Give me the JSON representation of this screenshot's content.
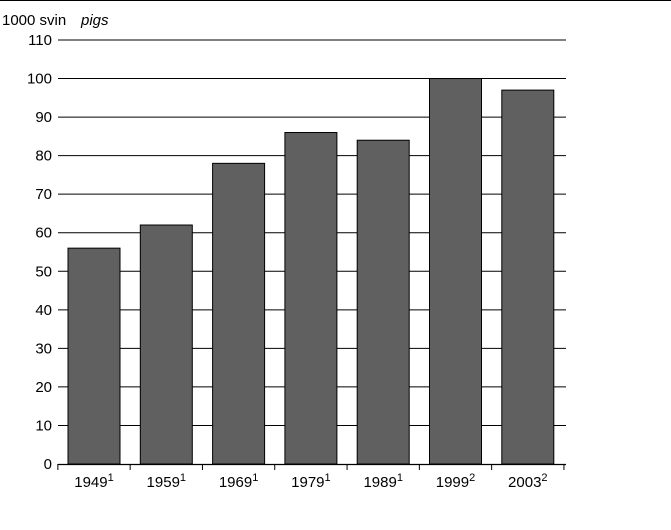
{
  "chart_data": {
    "type": "bar",
    "ylabel": "1000 svin",
    "ylabel_en": "pigs",
    "categories": [
      {
        "label": "1949",
        "note": "1"
      },
      {
        "label": "1959",
        "note": "1"
      },
      {
        "label": "1969",
        "note": "1"
      },
      {
        "label": "1979",
        "note": "1"
      },
      {
        "label": "1989",
        "note": "1"
      },
      {
        "label": "1999",
        "note": "2"
      },
      {
        "label": "2003",
        "note": "2"
      }
    ],
    "values": [
      56,
      62,
      78,
      86,
      84,
      100,
      97
    ],
    "ylim": [
      0,
      110
    ],
    "yticks": [
      0,
      10,
      20,
      30,
      40,
      50,
      60,
      70,
      80,
      90,
      100,
      110
    ],
    "grid": true,
    "legend": "none",
    "bar_color": "#606060",
    "grid_color": "#000000"
  }
}
